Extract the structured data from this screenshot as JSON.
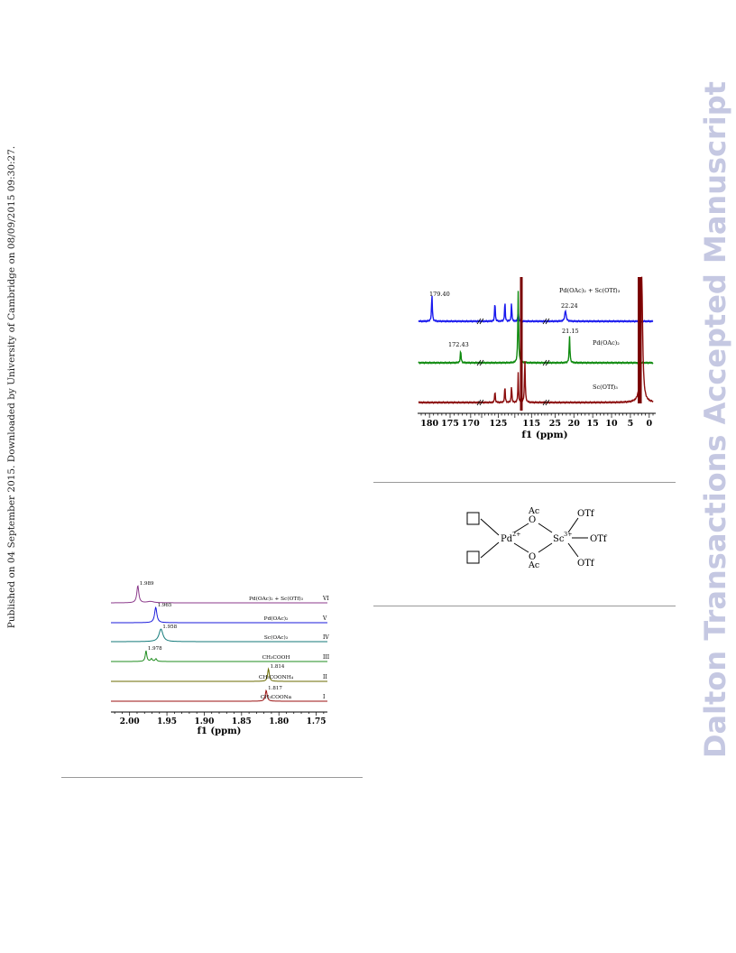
{
  "side_note": "Published on 04 September 2015. Downloaded by University of Cambridge on 08/09/2015 09:30:27.",
  "watermark": "Dalton Transactions Accepted Manuscript",
  "figure_h_nmr": {
    "axis_label": "f1 (ppm)",
    "ticks": [
      "2.00",
      "1.95",
      "1.90",
      "1.85",
      "1.80",
      "1.75"
    ],
    "traces": [
      {
        "roman": "VI",
        "label": "Pd(OAc)₂ + Sc(OTf)₃",
        "peak_label": "1.989",
        "peak_ppm": 1.989,
        "color": "#8b3a8b"
      },
      {
        "roman": "V",
        "label": "Pd(OAc)₂",
        "peak_label": "1.965",
        "peak_ppm": 1.965,
        "color": "#1a1adb"
      },
      {
        "roman": "IV",
        "label": "Sc(OAc)₃",
        "peak_label": "1.958",
        "peak_ppm": 1.958,
        "color": "#137a7a"
      },
      {
        "roman": "III",
        "label": "CH₃COOH",
        "peak_label": "1.978",
        "peak_ppm": 1.978,
        "color": "#1f8c1f"
      },
      {
        "roman": "II",
        "label": "CH₃COONH₄",
        "peak_label": "1.814",
        "peak_ppm": 1.814,
        "color": "#6b6b00"
      },
      {
        "roman": "I",
        "label": "CH₃COONa",
        "peak_label": "1.817",
        "peak_ppm": 1.817,
        "color": "#9b1010"
      }
    ]
  },
  "figure_c_nmr": {
    "axis_label": "f1 (ppm)",
    "ticks": [
      "180",
      "175",
      "170",
      "125",
      "115",
      "25",
      "20",
      "15",
      "10",
      "5",
      "0"
    ],
    "traces": [
      {
        "label": "Pd(OAc)₂ + Sc(OTf)₃",
        "peak_labels": [
          "179.40",
          "22.24"
        ],
        "color": "#1a1aee"
      },
      {
        "label": "Pd(OAc)₂",
        "peak_labels": [
          "172.43",
          "21.15"
        ],
        "color": "#0e8a0e"
      },
      {
        "label": "Sc(OTf)₃",
        "peak_labels": [],
        "color": "#8b0d0d"
      }
    ]
  },
  "scheme": {
    "pd_label": "Pd",
    "pd_charge": "2+",
    "sc_label": "Sc",
    "sc_charge": "3+",
    "bridge_top": "O",
    "bridge_bottom": "O",
    "ac_top": "Ac",
    "ac_bottom": "Ac",
    "otf_top": "OTf",
    "otf_mid": "OTf",
    "otf_bottom": "OTf"
  }
}
